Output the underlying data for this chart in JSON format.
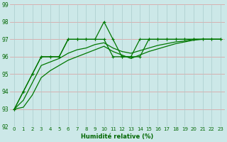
{
  "line1": {
    "x": [
      0,
      1,
      2,
      3,
      4,
      5,
      6,
      7,
      8,
      9,
      10,
      11,
      12,
      13,
      14,
      15,
      16,
      17,
      18,
      19,
      20,
      21,
      22,
      23
    ],
    "y": [
      93,
      94,
      95,
      96,
      96,
      96,
      97,
      97,
      97,
      97,
      97,
      96,
      96,
      96,
      96,
      97,
      97,
      97,
      97,
      97,
      97,
      97,
      97,
      97
    ],
    "has_markers": true
  },
  "line2": {
    "x": [
      0,
      1,
      2,
      3,
      4,
      5,
      6,
      7,
      8,
      9,
      10,
      11,
      12,
      13,
      14,
      15,
      16,
      17,
      18,
      19,
      20,
      21,
      22,
      23
    ],
    "y": [
      93,
      94,
      95,
      96,
      96,
      96,
      97,
      97,
      97,
      97,
      98,
      97,
      96,
      96,
      97,
      97,
      97,
      97,
      97,
      97,
      97,
      97,
      97,
      97
    ],
    "has_markers": true
  },
  "line3": {
    "x": [
      0,
      1,
      2,
      3,
      4,
      5,
      6,
      7,
      8,
      9,
      10,
      11,
      12,
      13,
      14,
      15,
      16,
      17,
      18,
      19,
      20,
      21,
      22,
      23
    ],
    "y": [
      93,
      93.5,
      94.5,
      95.5,
      95.7,
      95.9,
      96.2,
      96.4,
      96.5,
      96.7,
      96.8,
      96.5,
      96.3,
      96.2,
      96.35,
      96.5,
      96.65,
      96.75,
      96.85,
      96.9,
      97.0,
      97.0,
      97.0,
      97.0
    ],
    "has_markers": false
  },
  "line4": {
    "x": [
      0,
      1,
      2,
      3,
      4,
      5,
      6,
      7,
      8,
      9,
      10,
      11,
      12,
      13,
      14,
      15,
      16,
      17,
      18,
      19,
      20,
      21,
      22,
      23
    ],
    "y": [
      93,
      93.1,
      93.8,
      94.8,
      95.2,
      95.5,
      95.8,
      96.0,
      96.2,
      96.4,
      96.6,
      96.3,
      96.1,
      95.9,
      96.1,
      96.3,
      96.45,
      96.6,
      96.75,
      96.85,
      96.95,
      97.0,
      97.0,
      97.0
    ],
    "has_markers": false
  },
  "line_color": "#007700",
  "bg_color": "#cce8e8",
  "grid_color_h": "#dd9999",
  "grid_color_v": "#aacccc",
  "xlabel": "Humidité relative (%)",
  "ylim": [
    92,
    99
  ],
  "xlim_min": -0.5,
  "xlim_max": 23.5,
  "yticks": [
    92,
    93,
    94,
    95,
    96,
    97,
    98,
    99
  ],
  "xticks": [
    0,
    1,
    2,
    3,
    4,
    5,
    6,
    7,
    8,
    9,
    10,
    11,
    12,
    13,
    14,
    15,
    16,
    17,
    18,
    19,
    20,
    21,
    22,
    23
  ],
  "tick_fontsize": 5,
  "xlabel_fontsize": 6,
  "linewidth": 0.9,
  "markersize": 3.5
}
